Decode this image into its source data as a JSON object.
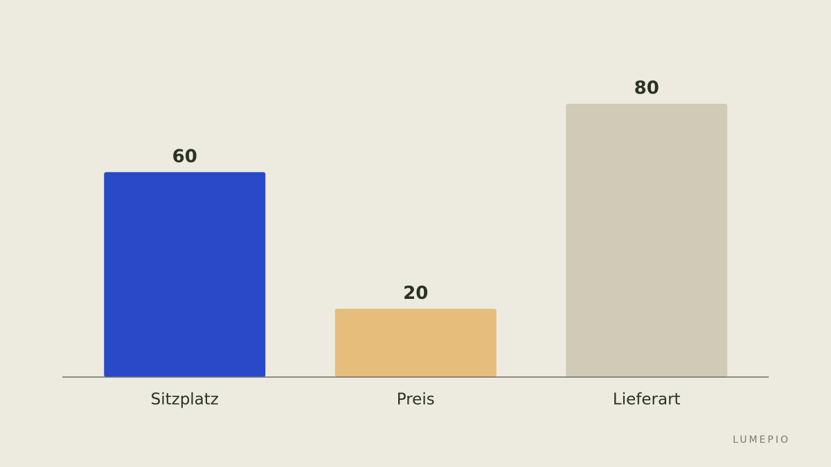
{
  "chart_data": {
    "type": "bar",
    "categories": [
      "Sitzplatz",
      "Preis",
      "Lieferart"
    ],
    "values": [
      60,
      20,
      80
    ],
    "colors": [
      "#2949c8",
      "#e6bd7a",
      "#d0cab6"
    ],
    "brand": "LUMEPIO"
  }
}
